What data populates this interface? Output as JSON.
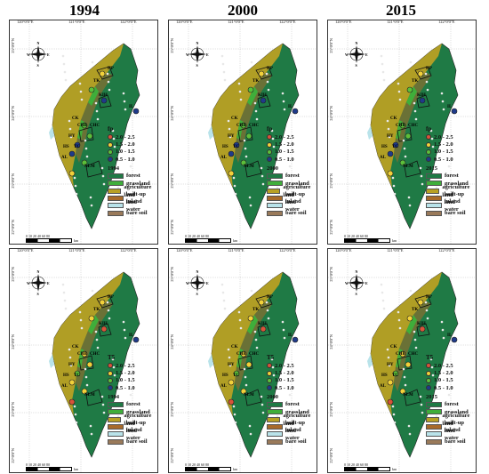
{
  "columns": [
    {
      "year": "1994"
    },
    {
      "year": "2000"
    },
    {
      "year": "2015"
    }
  ],
  "rows": [
    {
      "symbol": "fp"
    },
    {
      "symbol": "T5"
    }
  ],
  "graticule": {
    "lon": [
      "120°0'0\"E",
      "121°0'0\"E",
      "122°0'0\"E"
    ],
    "lat": [
      "25°0'0\"N",
      "24°0'0\"N",
      "23°0'0\"N",
      "22°0'0\"N"
    ]
  },
  "compass": {
    "n": "N",
    "s": "S",
    "e": "E",
    "w": "W"
  },
  "scale": {
    "ticks": "0 10 20    40    60    80",
    "unit": "km"
  },
  "legend": {
    "classes": [
      {
        "label": "2.0 - 2.5",
        "color": "#d9533a"
      },
      {
        "label": "1.5 - 2.0",
        "color": "#f2d13a"
      },
      {
        "label": "1.0 - 1.5",
        "color": "#5cbf3a"
      },
      {
        "label": "0.5 - 1.0",
        "color": "#1f3a8a"
      }
    ],
    "landuse": [
      {
        "label": "forest",
        "color": "#1f7a45"
      },
      {
        "label": "grassland",
        "color": "#3fae3a"
      },
      {
        "label": "agriculture land",
        "color": "#b8a024"
      },
      {
        "label": "built-up land",
        "color": "#a86a2a"
      },
      {
        "label": "inland water",
        "color": "#b9e3ea"
      },
      {
        "label": "bare soil",
        "color": "#9a7a5a"
      }
    ]
  },
  "sites": [
    "HP",
    "TK",
    "KIH",
    "IL",
    "CK",
    "CHB",
    "CHC",
    "HY",
    "HS",
    "TC",
    "AL",
    "NLM"
  ]
}
